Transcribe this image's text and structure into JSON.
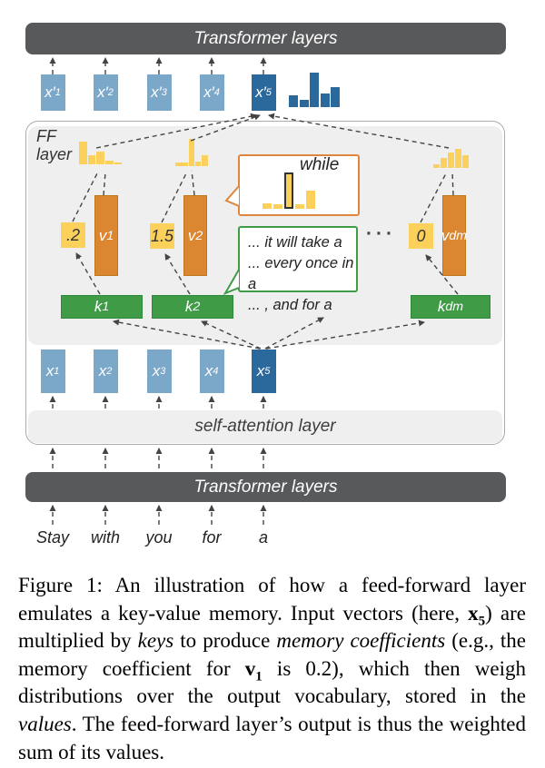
{
  "figure": {
    "top_bar_label": "Transformer layers",
    "bottom_bar_label": "Transformer layers",
    "self_attention_label": "self-attention layer",
    "ff_label_line1": "FF",
    "ff_label_line2": "layer",
    "output_vectors": [
      {
        "base": "x′",
        "sub": "1"
      },
      {
        "base": "x′",
        "sub": "2"
      },
      {
        "base": "x′",
        "sub": "3"
      },
      {
        "base": "x′",
        "sub": "4"
      },
      {
        "base": "x′",
        "sub": "5"
      }
    ],
    "input_vectors": [
      {
        "base": "x",
        "sub": "1"
      },
      {
        "base": "x",
        "sub": "2"
      },
      {
        "base": "x",
        "sub": "3"
      },
      {
        "base": "x",
        "sub": "4"
      },
      {
        "base": "x",
        "sub": "5"
      }
    ],
    "memory_coefficients": [
      ".2",
      "1.5",
      "0"
    ],
    "values": [
      {
        "base": "v",
        "sub": "1"
      },
      {
        "base": "v",
        "sub": "2"
      },
      {
        "base": "v",
        "sub": "dm"
      }
    ],
    "keys": [
      {
        "base": "k",
        "sub": "1"
      },
      {
        "base": "k",
        "sub": "2"
      },
      {
        "base": "k",
        "sub": "dm"
      }
    ],
    "ellipsis": "···",
    "bubbles": {
      "while_label": "while",
      "example_lines": [
        "... it will take a",
        "... every once in a",
        "... , and for a"
      ]
    },
    "input_tokens": [
      "Stay",
      "with",
      "you",
      "for",
      "a"
    ]
  },
  "chart_data": [
    {
      "name": "output_distribution",
      "type": "bar",
      "title": "FF layer output distribution (next to x′5)",
      "values": [
        13,
        8,
        38,
        15,
        22
      ],
      "unit": "relative height",
      "color": "#2B689B"
    },
    {
      "name": "value_v1_distribution",
      "type": "bar",
      "title": "vocabulary distribution stored in v1",
      "values": [
        25,
        10,
        14,
        4,
        2
      ],
      "unit": "relative height",
      "color": "#FBD15B"
    },
    {
      "name": "value_v2_distribution",
      "type": "bar",
      "title": "vocabulary distribution stored in v2",
      "values": [
        4,
        4,
        30,
        5,
        12
      ],
      "unit": "relative height",
      "color": "#FBD15B"
    },
    {
      "name": "value_vdm_distribution",
      "type": "bar",
      "title": "vocabulary distribution stored in vdm",
      "values": [
        4,
        11,
        17,
        21,
        14
      ],
      "unit": "relative height",
      "color": "#FBD15B"
    },
    {
      "name": "while_value_distribution",
      "type": "bar",
      "title": "zoomed value distribution peaking at the token while",
      "values": [
        6,
        5,
        40,
        5,
        20
      ],
      "highlight_index": 2,
      "highlight_label": "while",
      "unit": "relative height",
      "color": "#FBD15B"
    }
  ],
  "caption": {
    "segments": [
      {
        "style": "n",
        "text": "Figure 1:  An illustration of how a feed-forward layer emulates a key-value memory. Input vectors (here, "
      },
      {
        "style": "b",
        "text": "x"
      },
      {
        "style": "bsub",
        "text": "5"
      },
      {
        "style": "n",
        "text": ") are multiplied by "
      },
      {
        "style": "i",
        "text": "keys"
      },
      {
        "style": "n",
        "text": " to produce "
      },
      {
        "style": "i",
        "text": "memory coefficients"
      },
      {
        "style": "n",
        "text": " (e.g., the memory coefficient for "
      },
      {
        "style": "b",
        "text": "v"
      },
      {
        "style": "bsub",
        "text": "1"
      },
      {
        "style": "n",
        "text": " is 0.2), which then weigh distributions over the output vocabulary, stored in the "
      },
      {
        "style": "i",
        "text": "values"
      },
      {
        "style": "n",
        "text": ". The feed-forward layer’s output is thus the weighted sum of its values."
      }
    ]
  },
  "colors": {
    "light_blue": "#7BA7C9",
    "dark_blue": "#2B689B",
    "orange": "#DB8630",
    "yellow": "#FBD15B",
    "green": "#3F9B46",
    "bar_gray": "#58595B",
    "panel_gray": "#EFEFEF",
    "bubble_orange_border": "#E0863C",
    "bubble_green_border": "#3F9B46",
    "dashed_line": "#444444"
  }
}
